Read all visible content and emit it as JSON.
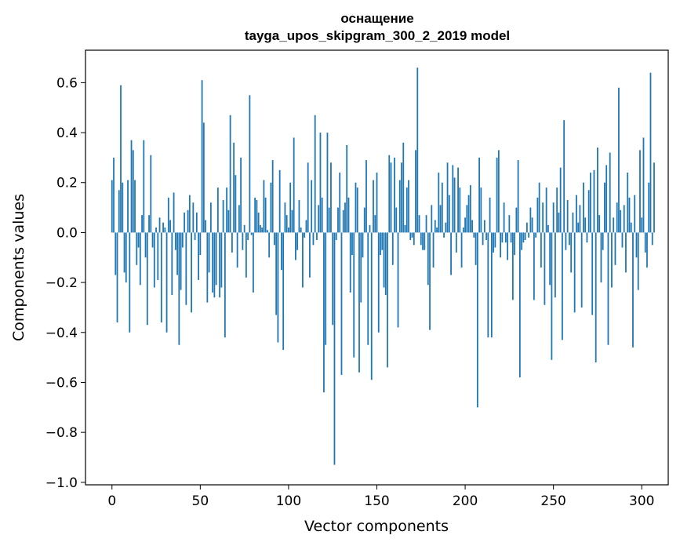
{
  "chart_data": {
    "type": "bar",
    "title": "оснащение",
    "subtitle": "tayga_upos_skipgram_300_2_2019 model",
    "xlabel": "Vector components",
    "ylabel": "Components values",
    "xlim": [
      -15,
      315
    ],
    "ylim": [
      -1.01,
      0.73
    ],
    "xticks": [
      0,
      50,
      100,
      150,
      200,
      250,
      300
    ],
    "xtick_labels": [
      "0",
      "50",
      "100",
      "150",
      "200",
      "250",
      "300"
    ],
    "yticks": [
      -1.0,
      -0.8,
      -0.6,
      -0.4,
      -0.2,
      0.0,
      0.2,
      0.4,
      0.6
    ],
    "ytick_labels": [
      "−1.0",
      "−0.8",
      "−0.6",
      "−0.4",
      "−0.2",
      "0.0",
      "0.2",
      "0.4",
      "0.6"
    ],
    "grid": false,
    "bar_color": "#1f77b4",
    "values": [
      0.21,
      0.3,
      -0.17,
      -0.36,
      0.17,
      0.59,
      0.2,
      -0.16,
      -0.2,
      0.21,
      -0.4,
      0.37,
      0.33,
      0.21,
      -0.13,
      -0.06,
      -0.21,
      0.07,
      0.37,
      -0.1,
      -0.37,
      0.07,
      0.31,
      -0.06,
      -0.22,
      0.02,
      -0.19,
      0.06,
      -0.36,
      0.04,
      0.02,
      -0.4,
      0.14,
      0.05,
      -0.25,
      0.16,
      -0.07,
      -0.17,
      -0.45,
      -0.23,
      -0.06,
      0.08,
      -0.29,
      0.09,
      0.15,
      -0.32,
      0.12,
      -0.03,
      0.08,
      -0.19,
      -0.09,
      0.61,
      0.44,
      0.05,
      -0.28,
      -0.16,
      0.12,
      -0.24,
      -0.26,
      -0.21,
      0.18,
      -0.26,
      -0.22,
      0.13,
      -0.42,
      0.18,
      0.09,
      0.47,
      -0.08,
      0.36,
      0.23,
      -0.14,
      0.11,
      0.3,
      -0.07,
      0.03,
      -0.18,
      -0.03,
      0.55,
      -0.01,
      -0.24,
      0.14,
      0.13,
      0.08,
      0.03,
      0.02,
      0.21,
      0.14,
      0.01,
      -0.1,
      0.2,
      0.29,
      -0.05,
      -0.33,
      -0.44,
      0.25,
      -0.15,
      -0.47,
      0.12,
      0.07,
      0.02,
      0.2,
      0.09,
      0.38,
      -0.11,
      -0.07,
      0.13,
      0.02,
      -0.22,
      -0.02,
      0.05,
      0.28,
      -0.18,
      0.21,
      -0.05,
      0.47,
      -0.03,
      0.11,
      0.4,
      0.14,
      -0.64,
      -0.45,
      0.4,
      0.1,
      0.28,
      -0.37,
      -0.93,
      -0.03,
      0.1,
      0.24,
      -0.57,
      0.09,
      0.12,
      0.35,
      0.14,
      -0.24,
      -0.09,
      -0.5,
      0.2,
      0.18,
      -0.56,
      -0.28,
      -0.1,
      0.1,
      0.29,
      -0.45,
      0.03,
      -0.59,
      0.21,
      0.07,
      0.24,
      -0.4,
      -0.09,
      -0.07,
      -0.22,
      -0.25,
      -0.54,
      0.31,
      0.28,
      -0.13,
      0.3,
      0.1,
      -0.38,
      0.21,
      0.28,
      0.36,
      0.03,
      0.18,
      0.21,
      -0.03,
      -0.02,
      -0.05,
      0.33,
      0.66,
      0.07,
      -0.05,
      -0.07,
      -0.07,
      0.07,
      -0.21,
      -0.39,
      0.11,
      -0.14,
      0.05,
      0.02,
      0.24,
      0.11,
      0.2,
      -0.02,
      0.04,
      0.28,
      0.15,
      -0.17,
      0.27,
      0.22,
      -0.08,
      0.26,
      0.18,
      -0.14,
      0.02,
      0.06,
      0.11,
      0.15,
      0.19,
      0.05,
      -0.02,
      -0.13,
      -0.7,
      0.3,
      0.18,
      -0.05,
      0.05,
      -0.03,
      -0.42,
      0.14,
      -0.42,
      -0.08,
      -0.06,
      0.3,
      0.33,
      -0.1,
      -0.04,
      0.12,
      -0.04,
      -0.11,
      0.07,
      -0.04,
      -0.27,
      -0.09,
      0.1,
      0.29,
      -0.58,
      -0.07,
      -0.04,
      -0.03,
      0.04,
      -0.02,
      0.1,
      0.06,
      -0.27,
      -0.02,
      0.14,
      0.2,
      -0.14,
      0.12,
      -0.29,
      0.18,
      0.03,
      -0.21,
      -0.51,
      0.12,
      -0.26,
      0.18,
      0.08,
      0.26,
      -0.43,
      0.45,
      -0.07,
      0.13,
      -0.05,
      -0.16,
      0.08,
      -0.32,
      0.15,
      0.04,
      0.11,
      -0.3,
      0.2,
      0.06,
      -0.04,
      0.17,
      0.24,
      -0.33,
      0.25,
      -0.52,
      0.34,
      0.07,
      -0.2,
      -0.07,
      0.2,
      0.27,
      -0.45,
      0.32,
      -0.22,
      0.06,
      -0.13,
      0.12,
      0.58,
      0.09,
      -0.06,
      0.11,
      -0.16,
      0.24,
      0.14,
      0.04,
      -0.46,
      0.15,
      -0.1,
      -0.23,
      0.33,
      0.06,
      0.38,
      -0.08,
      -0.14,
      0.2,
      0.64,
      -0.05,
      0.28
    ]
  }
}
